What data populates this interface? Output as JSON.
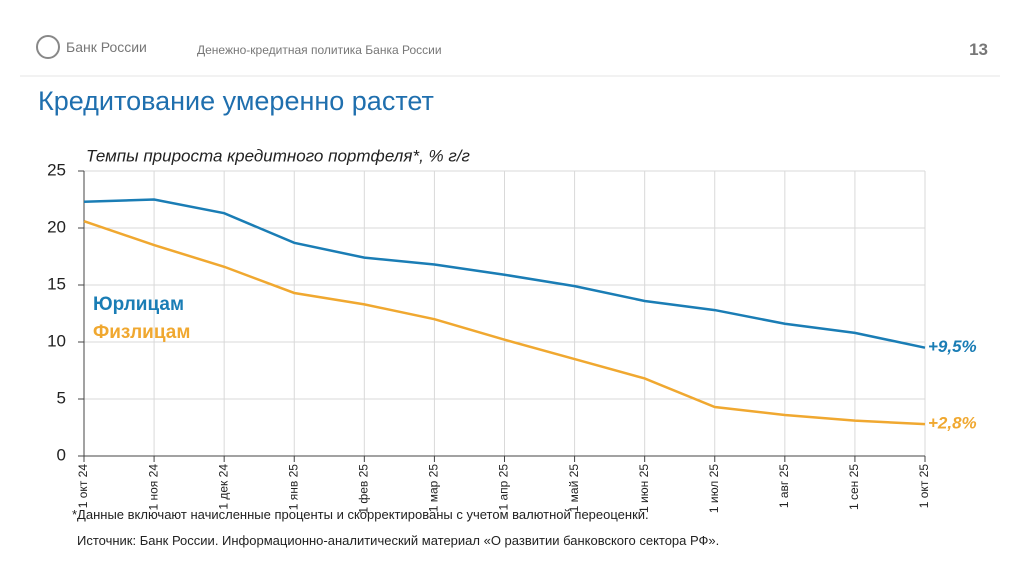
{
  "header": {
    "logo_text": "Банк России",
    "subtitle": "Денежно-кредитная политика Банка России",
    "page_number": "13"
  },
  "slide_title": "Кредитование умеренно растет",
  "chart_data": {
    "type": "line",
    "title": "Темпы прироста кредитного портфеля*, % г/г",
    "categories": [
      "1 окт 24",
      "1 ноя 24",
      "1 дек 24",
      "1 янв 25",
      "1 фев 25",
      "1 мар 25",
      "1 апр 25",
      "1 май 25",
      "1 июн 25",
      "1 июл 25",
      "1 авг 25",
      "1 сен 25",
      "1 окт 25"
    ],
    "series": [
      {
        "name": "Юрлицам",
        "color": "#1a7db5",
        "values": [
          22.3,
          22.5,
          21.3,
          18.7,
          17.4,
          16.8,
          15.9,
          14.9,
          13.6,
          12.8,
          11.6,
          10.8,
          9.5
        ],
        "value_labels": [
          null,
          null,
          null,
          null,
          null,
          null,
          null,
          null,
          null,
          null,
          null,
          null,
          "+9,5%"
        ]
      },
      {
        "name": "Физлицам",
        "color": "#f0a830",
        "values": [
          20.6,
          18.5,
          16.6,
          14.3,
          13.3,
          12.0,
          10.2,
          8.5,
          6.8,
          4.3,
          3.6,
          3.1,
          2.8
        ],
        "value_labels": [
          null,
          null,
          null,
          null,
          null,
          null,
          null,
          null,
          null,
          null,
          null,
          null,
          "+2,8%"
        ]
      }
    ],
    "ylim": [
      0,
      25
    ],
    "yticks": [
      0,
      5,
      10,
      15,
      20,
      25
    ],
    "grid": true
  },
  "footnote": "*Данные включают начисленные проценты и скорректированы с учетом валютной переоценки.",
  "source": "Источник: Банк России. Информационно-аналитический материал «О развитии банковского сектора РФ»."
}
